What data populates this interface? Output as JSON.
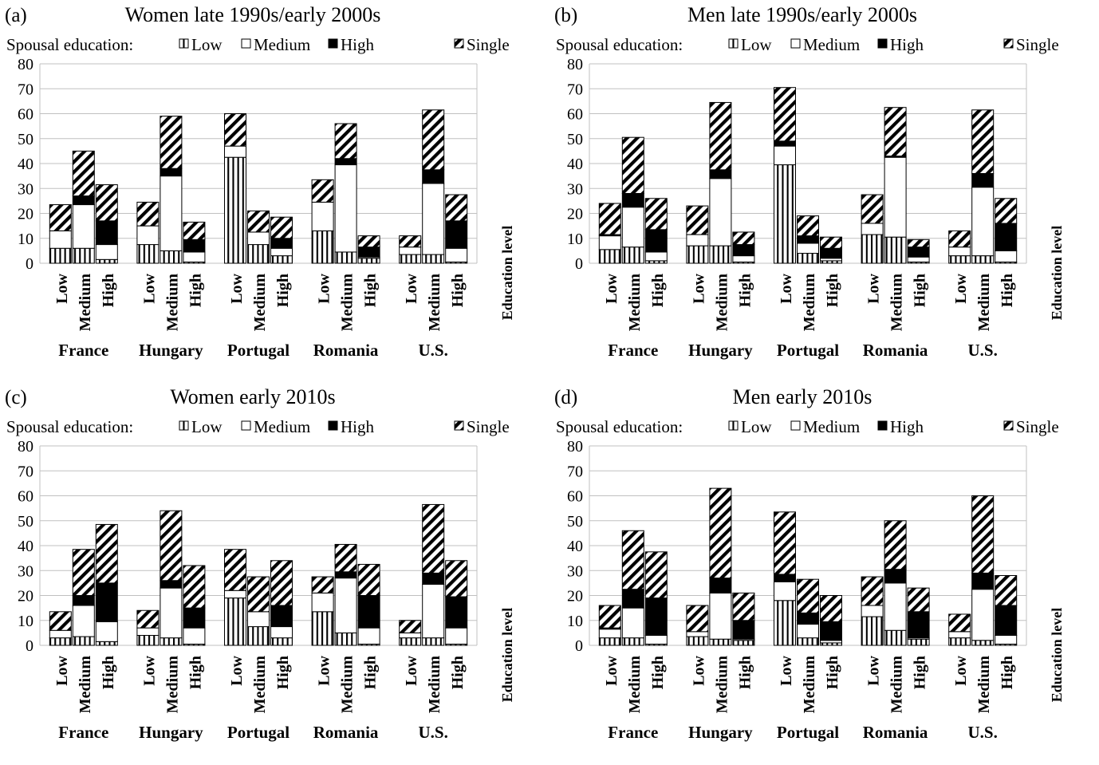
{
  "legend": {
    "title": "Spousal education:",
    "items": [
      {
        "key": "low",
        "label": "Low",
        "pattern": "vertical-stripes"
      },
      {
        "key": "medium",
        "label": "Medium",
        "pattern": "white"
      },
      {
        "key": "high",
        "label": "High",
        "pattern": "solid-black"
      },
      {
        "key": "single",
        "label": "Single",
        "pattern": "diagonal-stripes"
      }
    ]
  },
  "colors": {
    "ink": "#000000",
    "paper": "#ffffff",
    "grid": "#c0c0c0"
  },
  "chart_data": [
    {
      "type": "bar",
      "stacked": true,
      "letter": "(a)",
      "title": "Women late 1990s/early 2000s",
      "ylim": [
        0,
        80
      ],
      "yticks": [
        0,
        10,
        20,
        30,
        40,
        50,
        60,
        70,
        80
      ],
      "right_label": "Education level",
      "countries": [
        "France",
        "Hungary",
        "Portugal",
        "Romania",
        "U.S."
      ],
      "education_levels": [
        "Low",
        "Medium",
        "High"
      ],
      "stack_order": [
        "low",
        "medium",
        "high",
        "single"
      ],
      "bars": [
        [
          [
            6,
            7,
            0,
            10.5
          ],
          [
            6,
            17.5,
            3.5,
            18
          ],
          [
            1.5,
            6,
            9.5,
            14.5
          ]
        ],
        [
          [
            7.5,
            7.5,
            0,
            9.5
          ],
          [
            5,
            30,
            3,
            21
          ],
          [
            0.5,
            4,
            5,
            7
          ]
        ],
        [
          [
            42.5,
            4.5,
            0,
            13
          ],
          [
            7.5,
            5,
            0,
            8.5
          ],
          [
            3,
            3,
            4,
            8.5
          ]
        ],
        [
          [
            13,
            11.5,
            0,
            9
          ],
          [
            4.5,
            35,
            2.5,
            14
          ],
          [
            2,
            0.5,
            4,
            4.5
          ]
        ],
        [
          [
            3.5,
            3,
            0,
            4.5
          ],
          [
            3.5,
            28.5,
            5.5,
            24
          ],
          [
            0.5,
            5.5,
            11,
            10.5
          ]
        ]
      ]
    },
    {
      "type": "bar",
      "stacked": true,
      "letter": "(b)",
      "title": "Men late 1990s/early 2000s",
      "ylim": [
        0,
        80
      ],
      "yticks": [
        0,
        10,
        20,
        30,
        40,
        50,
        60,
        70,
        80
      ],
      "right_label": "Education level",
      "countries": [
        "France",
        "Hungary",
        "Portugal",
        "Romania",
        "U.S."
      ],
      "education_levels": [
        "Low",
        "Medium",
        "High"
      ],
      "stack_order": [
        "low",
        "medium",
        "high",
        "single"
      ],
      "bars": [
        [
          [
            5.5,
            5.5,
            0.5,
            12.5
          ],
          [
            6.5,
            16,
            5.5,
            22.5
          ],
          [
            1,
            3.5,
            9,
            12.5
          ]
        ],
        [
          [
            7,
            4.5,
            0,
            11.5
          ],
          [
            7,
            27,
            3.5,
            27
          ],
          [
            0.5,
            2.5,
            4.5,
            5
          ]
        ],
        [
          [
            39.5,
            7.5,
            2,
            21.5
          ],
          [
            4,
            4,
            3,
            8
          ],
          [
            1,
            1,
            4,
            4.5
          ]
        ],
        [
          [
            11.5,
            4.5,
            0,
            11.5
          ],
          [
            10.5,
            32,
            0.5,
            19.5
          ],
          [
            0.5,
            2,
            4,
            3
          ]
        ],
        [
          [
            3,
            3.5,
            0,
            6.5
          ],
          [
            3,
            27.5,
            5.5,
            25.5
          ],
          [
            0.5,
            4.5,
            11,
            10
          ]
        ]
      ]
    },
    {
      "type": "bar",
      "stacked": true,
      "letter": "(c)",
      "title": "Women early 2010s",
      "ylim": [
        0,
        80
      ],
      "yticks": [
        0,
        10,
        20,
        30,
        40,
        50,
        60,
        70,
        80
      ],
      "right_label": "Education level",
      "countries": [
        "France",
        "Hungary",
        "Portugal",
        "Romania",
        "U.S."
      ],
      "education_levels": [
        "Low",
        "Medium",
        "High"
      ],
      "stack_order": [
        "low",
        "medium",
        "high",
        "single"
      ],
      "bars": [
        [
          [
            3,
            3,
            0,
            7.5
          ],
          [
            3.5,
            12.5,
            4,
            18.5
          ],
          [
            1.5,
            8,
            15.5,
            23.5
          ]
        ],
        [
          [
            4,
            3,
            0,
            7
          ],
          [
            3,
            20,
            3,
            28
          ],
          [
            0.5,
            6.5,
            8,
            17
          ]
        ],
        [
          [
            19,
            3,
            0,
            16.5
          ],
          [
            7.5,
            6,
            0,
            14
          ],
          [
            3,
            4.5,
            8.5,
            18
          ]
        ],
        [
          [
            13.5,
            7.5,
            0,
            6.5
          ],
          [
            5,
            22,
            2.5,
            11
          ],
          [
            0.5,
            6.5,
            13,
            12.5
          ]
        ],
        [
          [
            3,
            2,
            0,
            5
          ],
          [
            3,
            21.5,
            4.5,
            27.5
          ],
          [
            0.5,
            6.5,
            12.5,
            14.5
          ]
        ]
      ]
    },
    {
      "type": "bar",
      "stacked": true,
      "letter": "(d)",
      "title": "Men early 2010s",
      "ylim": [
        0,
        80
      ],
      "yticks": [
        0,
        10,
        20,
        30,
        40,
        50,
        60,
        70,
        80
      ],
      "right_label": "Education level",
      "countries": [
        "France",
        "Hungary",
        "Portugal",
        "Romania",
        "U.S."
      ],
      "education_levels": [
        "Low",
        "Medium",
        "High"
      ],
      "stack_order": [
        "low",
        "medium",
        "high",
        "single"
      ],
      "bars": [
        [
          [
            3,
            3.5,
            0.5,
            9
          ],
          [
            3,
            12,
            7.5,
            23.5
          ],
          [
            0.5,
            3.5,
            15,
            18.5
          ]
        ],
        [
          [
            3.5,
            2,
            0,
            10.5
          ],
          [
            2.5,
            18.5,
            6,
            36
          ],
          [
            2,
            0.5,
            7.5,
            11
          ]
        ],
        [
          [
            18,
            7.5,
            3,
            25
          ],
          [
            3,
            5.5,
            4.5,
            13.5
          ],
          [
            1,
            1,
            7.5,
            10.5
          ]
        ],
        [
          [
            11.5,
            4.5,
            0,
            11.5
          ],
          [
            6,
            19,
            5.5,
            19.5
          ],
          [
            2.5,
            0.5,
            10.5,
            9.5
          ]
        ],
        [
          [
            3,
            2.5,
            0,
            7
          ],
          [
            2,
            20.5,
            6.5,
            31
          ],
          [
            0.5,
            3.5,
            12,
            12
          ]
        ]
      ]
    }
  ]
}
